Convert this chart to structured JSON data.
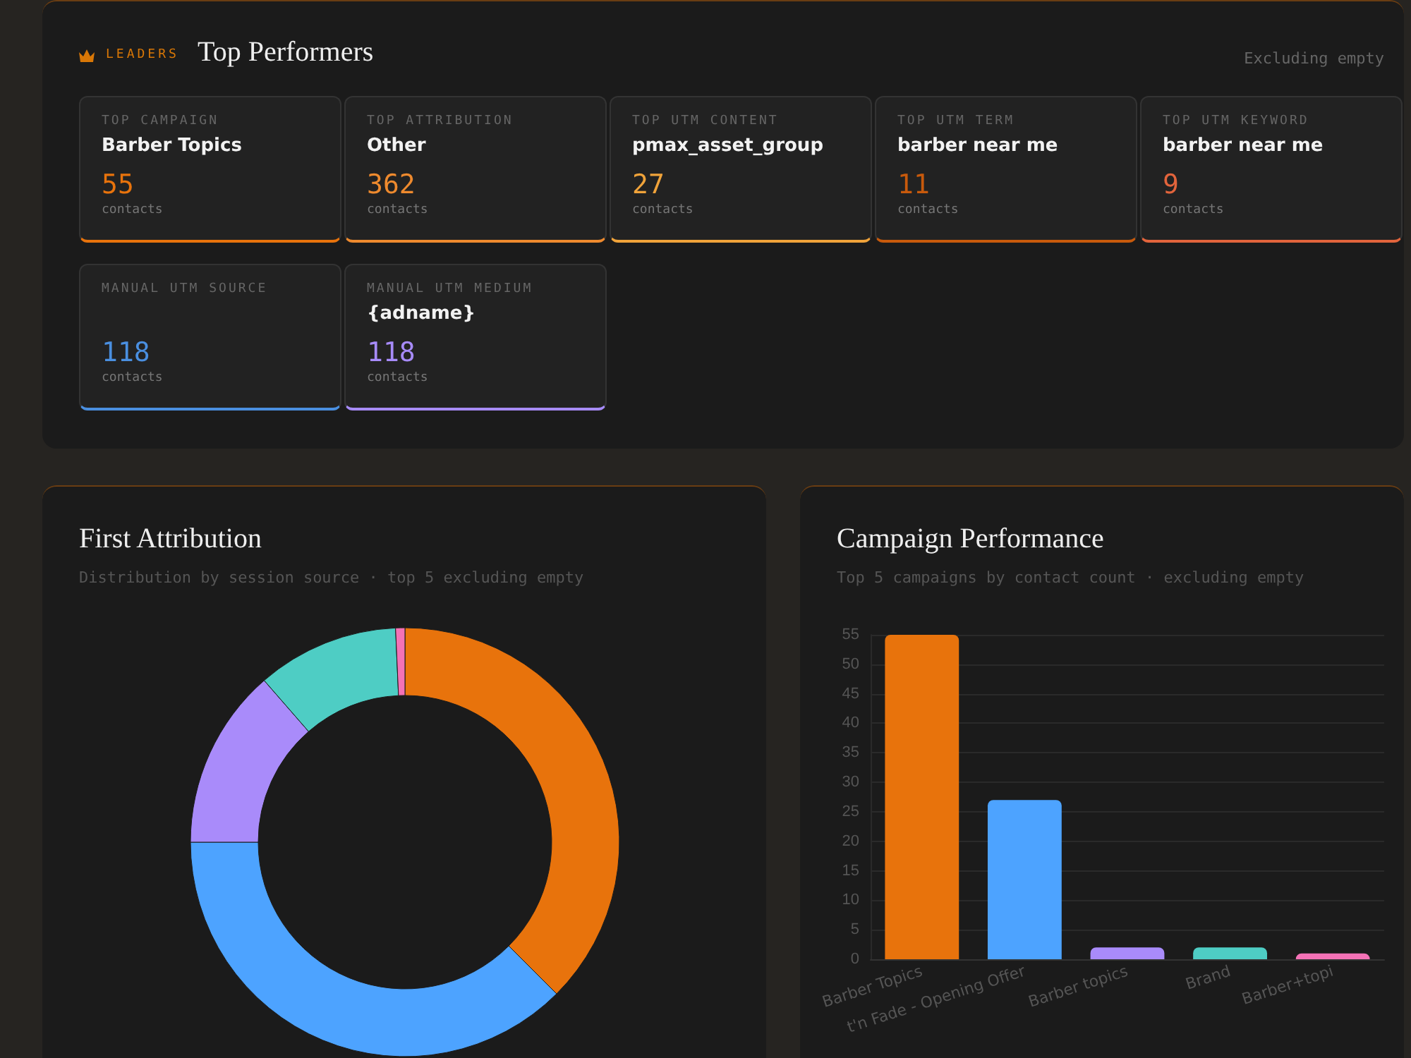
{
  "chart_data": [
    {
      "type": "other",
      "title": "Top Performers",
      "subtitle": "LEADERS",
      "ylabel": "contacts",
      "data_labels": true,
      "categories": [
        "TOP CAMPAIGN",
        "TOP ATTRIBUTION",
        "TOP UTM CONTENT",
        "TOP UTM TERM",
        "TOP UTM KEYWORD",
        "MANUAL UTM SOURCE",
        "MANUAL UTM MEDIUM"
      ],
      "values": [
        55,
        362,
        27,
        11,
        9,
        118,
        118
      ],
      "annotations": [
        "Excluding empty",
        {
          "text": "Barber Topics",
          "x": "TOP CAMPAIGN"
        },
        {
          "text": "Other",
          "x": "TOP ATTRIBUTION"
        },
        {
          "text": "pmax_asset_group",
          "x": "TOP UTM CONTENT"
        },
        {
          "text": "barber near me",
          "x": "TOP UTM TERM"
        },
        {
          "text": "barber near me",
          "x": "TOP UTM KEYWORD"
        },
        {
          "text": "{adname}",
          "x": "MANUAL UTM MEDIUM"
        }
      ]
    },
    {
      "type": "donut",
      "title": "First Attribution",
      "subtitle": "Distribution by session source · top 5 excluding empty",
      "categories": [
        null,
        null,
        null,
        null,
        null
      ],
      "values": [
        37.5,
        37.5,
        13.6,
        10.7,
        0.7
      ],
      "colors": [
        "#e8730c",
        "#4da3ff",
        "#a98bfa",
        "#4ecdc4",
        "#f472b6"
      ]
    },
    {
      "type": "bar",
      "title": "Campaign Performance",
      "subtitle": "Top 5 campaigns by contact count · excluding empty",
      "categories": [
        "Barber Topics",
        "t'n Fade - Opening Offer",
        "Barber topics",
        "Brand",
        "Barber+topi"
      ],
      "values": [
        55,
        27,
        2,
        2,
        1
      ],
      "colors": [
        "#e8730c",
        "#4da3ff",
        "#a98bfa",
        "#4ecdc4",
        "#f472b6"
      ],
      "ylim": [
        0,
        55
      ],
      "yticks": [
        0,
        5,
        10,
        15,
        20,
        25,
        30,
        35,
        40,
        45,
        50,
        55
      ],
      "grid": "y"
    }
  ]
}
